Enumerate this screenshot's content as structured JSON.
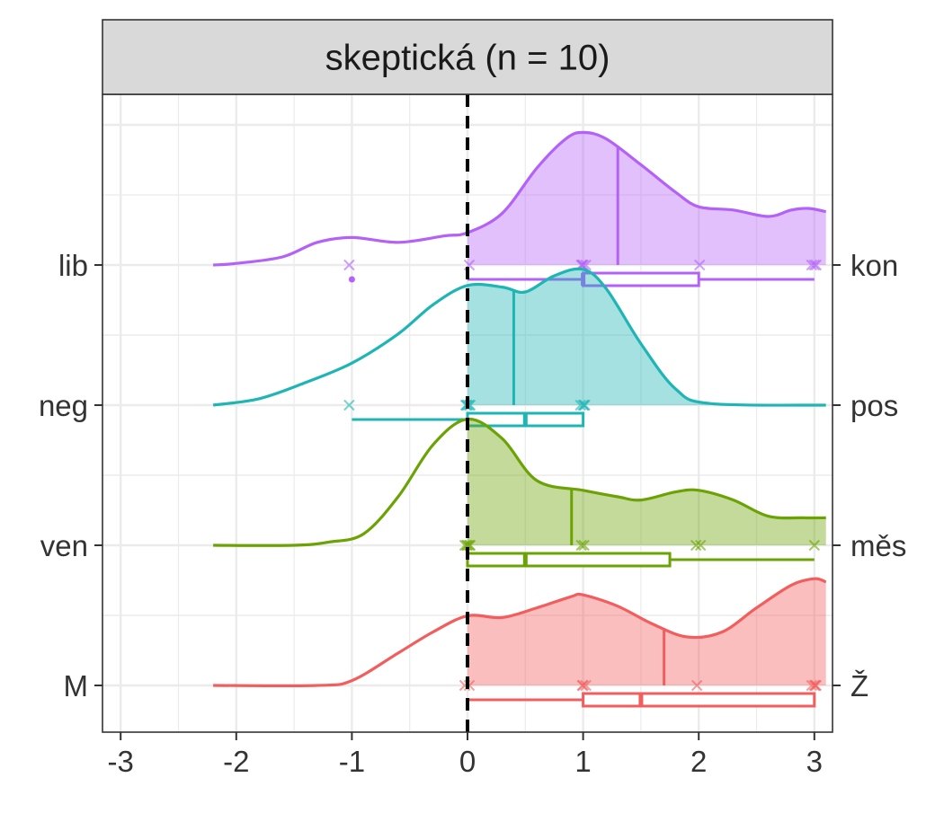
{
  "chart_data": {
    "type": "density-ridgeline",
    "facet_title": "skeptická (n = 10)",
    "x_ticks": [
      "-3",
      "-2",
      "-1",
      "0",
      "1",
      "2",
      "3"
    ],
    "xlim": [
      -3.1,
      3.15
    ],
    "reference_line_x": 0,
    "rows": [
      {
        "left_label": "lib",
        "right_label": "kon",
        "color": "#B361F7",
        "density": [
          [
            -2.2,
            0.0
          ],
          [
            -2.0,
            0.01
          ],
          [
            -1.6,
            0.05
          ],
          [
            -1.3,
            0.14
          ],
          [
            -1.0,
            0.17
          ],
          [
            -0.6,
            0.14
          ],
          [
            -0.2,
            0.18
          ],
          [
            0.0,
            0.2
          ],
          [
            0.3,
            0.32
          ],
          [
            0.6,
            0.6
          ],
          [
            0.85,
            0.78
          ],
          [
            1.0,
            0.82
          ],
          [
            1.2,
            0.78
          ],
          [
            1.5,
            0.62
          ],
          [
            1.8,
            0.45
          ],
          [
            2.0,
            0.36
          ],
          [
            2.3,
            0.34
          ],
          [
            2.6,
            0.3
          ],
          [
            2.8,
            0.34
          ],
          [
            2.95,
            0.35
          ],
          [
            3.1,
            0.33
          ]
        ],
        "mean": 1.3,
        "points": [
          -1.0,
          0.0,
          1.0,
          1.0,
          1.0,
          1.0,
          2.0,
          3.0,
          3.0,
          3.0
        ],
        "box": {
          "whisker_low": 0.0,
          "q1": 1.0,
          "median": 1.0,
          "q3": 2.0,
          "whisker_high": 3.0
        },
        "outliers": [
          -1.0
        ]
      },
      {
        "left_label": "neg",
        "right_label": "pos",
        "color": "#1FB5B5",
        "density": [
          [
            -2.2,
            0.0
          ],
          [
            -1.8,
            0.04
          ],
          [
            -1.4,
            0.14
          ],
          [
            -1.0,
            0.26
          ],
          [
            -0.6,
            0.44
          ],
          [
            -0.3,
            0.62
          ],
          [
            0.0,
            0.74
          ],
          [
            0.3,
            0.73
          ],
          [
            0.5,
            0.7
          ],
          [
            0.75,
            0.8
          ],
          [
            1.0,
            0.84
          ],
          [
            1.2,
            0.72
          ],
          [
            1.5,
            0.38
          ],
          [
            1.8,
            0.1
          ],
          [
            2.1,
            0.01
          ],
          [
            3.1,
            0.0
          ]
        ],
        "mean": 0.4,
        "points": [
          -1.0,
          0.0,
          0.0,
          0.0,
          0.0,
          0.0,
          1.0,
          1.0,
          1.0,
          1.0
        ],
        "box": {
          "whisker_low": -1.0,
          "q1": 0.0,
          "median": 0.5,
          "q3": 1.0,
          "whisker_high": 1.0
        },
        "outliers": []
      },
      {
        "left_label": "ven",
        "right_label": "měs",
        "color": "#6BA304",
        "density": [
          [
            -2.2,
            0.0
          ],
          [
            -1.5,
            0.0
          ],
          [
            -1.2,
            0.02
          ],
          [
            -0.9,
            0.07
          ],
          [
            -0.6,
            0.3
          ],
          [
            -0.3,
            0.62
          ],
          [
            0.0,
            0.78
          ],
          [
            0.3,
            0.66
          ],
          [
            0.6,
            0.4
          ],
          [
            1.0,
            0.34
          ],
          [
            1.3,
            0.3
          ],
          [
            1.5,
            0.28
          ],
          [
            1.8,
            0.33
          ],
          [
            2.0,
            0.34
          ],
          [
            2.3,
            0.28
          ],
          [
            2.6,
            0.18
          ],
          [
            2.9,
            0.17
          ],
          [
            3.1,
            0.17
          ]
        ],
        "mean": 0.9,
        "points": [
          0.0,
          0.0,
          0.0,
          0.0,
          0.0,
          1.0,
          1.0,
          2.0,
          2.0,
          3.0
        ],
        "box": {
          "whisker_low": 0.0,
          "q1": 0.0,
          "median": 0.5,
          "q3": 1.75,
          "whisker_high": 3.0
        },
        "outliers": []
      },
      {
        "left_label": "M",
        "right_label": "Ž",
        "color": "#F25D5D",
        "density": [
          [
            -2.2,
            0.0
          ],
          [
            -1.3,
            0.0
          ],
          [
            -1.0,
            0.03
          ],
          [
            -0.6,
            0.2
          ],
          [
            -0.3,
            0.33
          ],
          [
            0.0,
            0.43
          ],
          [
            0.3,
            0.42
          ],
          [
            0.6,
            0.48
          ],
          [
            0.9,
            0.55
          ],
          [
            1.0,
            0.56
          ],
          [
            1.3,
            0.49
          ],
          [
            1.6,
            0.38
          ],
          [
            1.9,
            0.3
          ],
          [
            2.2,
            0.33
          ],
          [
            2.5,
            0.48
          ],
          [
            2.8,
            0.62
          ],
          [
            3.0,
            0.66
          ],
          [
            3.1,
            0.64
          ]
        ],
        "mean": 1.7,
        "points": [
          0.0,
          0.0,
          1.0,
          1.0,
          1.0,
          2.0,
          3.0,
          3.0,
          3.0,
          3.0
        ],
        "box": {
          "whisker_low": 0.0,
          "q1": 1.0,
          "median": 1.5,
          "q3": 3.0,
          "whisker_high": 3.0
        },
        "outliers": []
      }
    ]
  }
}
